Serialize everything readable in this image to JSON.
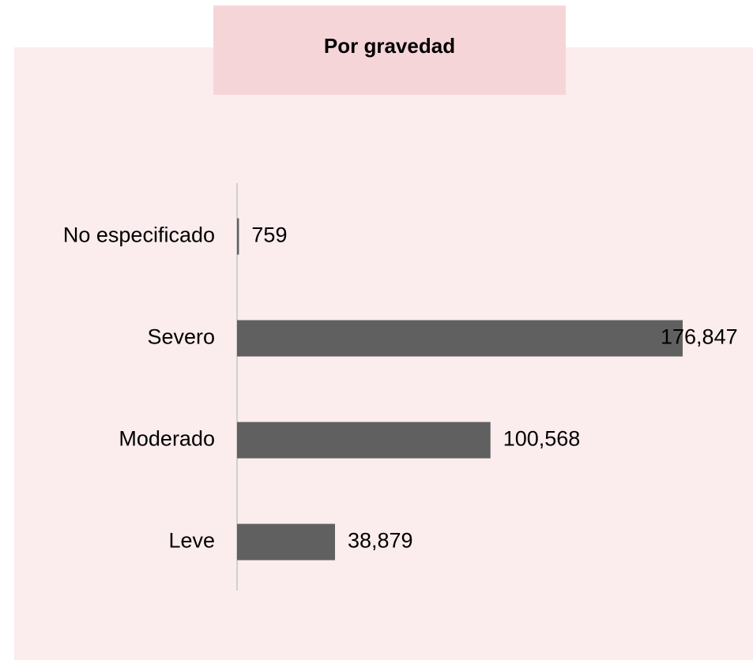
{
  "chart_data": {
    "type": "bar",
    "orientation": "horizontal",
    "title": "Por gravedad",
    "categories": [
      "No especificado",
      "Severo",
      "Moderado",
      "Leve"
    ],
    "values": [
      759,
      176847,
      100568,
      38879
    ],
    "value_labels": [
      "759",
      "176,847",
      "100,568",
      "38,879"
    ],
    "color": "#606060",
    "grid": false
  }
}
